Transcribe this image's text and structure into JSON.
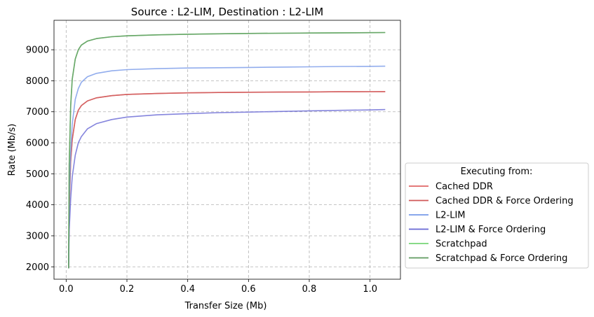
{
  "chart_data": {
    "type": "line",
    "title": "Source : L2-LIM, Destination : L2-LIM",
    "xlabel": "Transfer Size (Mb)",
    "ylabel": "Rate (Mb/s)",
    "xlim": [
      -0.04,
      1.1
    ],
    "ylim": [
      1600,
      9950
    ],
    "x_ticks": [
      0.0,
      0.2,
      0.4,
      0.6,
      0.8,
      1.0
    ],
    "x_tick_labels": [
      "0.0",
      "0.2",
      "0.4",
      "0.6",
      "0.8",
      "1.0"
    ],
    "y_ticks": [
      2000,
      3000,
      4000,
      5000,
      6000,
      7000,
      8000,
      9000
    ],
    "y_tick_labels": [
      "2000",
      "3000",
      "4000",
      "5000",
      "6000",
      "7000",
      "8000",
      "9000"
    ],
    "grid": true,
    "legend": {
      "title": "Executing from:",
      "placement": "outside-right-bottom"
    },
    "x": [
      0.008,
      0.01,
      0.015,
      0.02,
      0.03,
      0.04,
      0.05,
      0.07,
      0.1,
      0.15,
      0.2,
      0.3,
      0.4,
      0.5,
      0.6,
      0.7,
      0.8,
      0.9,
      1.0,
      1.05
    ],
    "series": [
      {
        "name": "Cached DDR",
        "color": "#e06666",
        "values": [
          1950,
          3900,
          5400,
          6100,
          6750,
          7050,
          7200,
          7350,
          7450,
          7520,
          7560,
          7590,
          7610,
          7620,
          7630,
          7635,
          7640,
          7645,
          7648,
          7650
        ]
      },
      {
        "name": "Cached DDR & Force Ordering",
        "color": "#d05858",
        "values": [
          1950,
          3900,
          5400,
          6100,
          6750,
          7050,
          7200,
          7350,
          7450,
          7520,
          7560,
          7590,
          7610,
          7620,
          7630,
          7635,
          7640,
          7645,
          7648,
          7650
        ]
      },
      {
        "name": "L2-LIM",
        "color": "#7799e8",
        "values": [
          1950,
          4100,
          5700,
          6600,
          7400,
          7750,
          7950,
          8130,
          8240,
          8320,
          8360,
          8390,
          8410,
          8420,
          8430,
          8440,
          8450,
          8460,
          8465,
          8470
        ]
      },
      {
        "name": "L2-LIM & Force Ordering",
        "color": "#6666d4",
        "values": [
          1950,
          3200,
          4200,
          4900,
          5600,
          6000,
          6200,
          6450,
          6620,
          6750,
          6830,
          6900,
          6940,
          6970,
          6990,
          7010,
          7030,
          7045,
          7060,
          7070
        ]
      },
      {
        "name": "Scratchpad",
        "color": "#77d477",
        "values": [
          1950,
          5300,
          7200,
          8050,
          8700,
          9000,
          9150,
          9280,
          9360,
          9420,
          9450,
          9480,
          9500,
          9515,
          9525,
          9532,
          9540,
          9545,
          9550,
          9555
        ]
      },
      {
        "name": "Scratchpad & Force Ordering",
        "color": "#5f9a5f",
        "values": [
          1950,
          5300,
          7200,
          8050,
          8700,
          9000,
          9150,
          9280,
          9360,
          9420,
          9450,
          9480,
          9500,
          9515,
          9525,
          9532,
          9540,
          9545,
          9550,
          9555
        ]
      }
    ]
  }
}
